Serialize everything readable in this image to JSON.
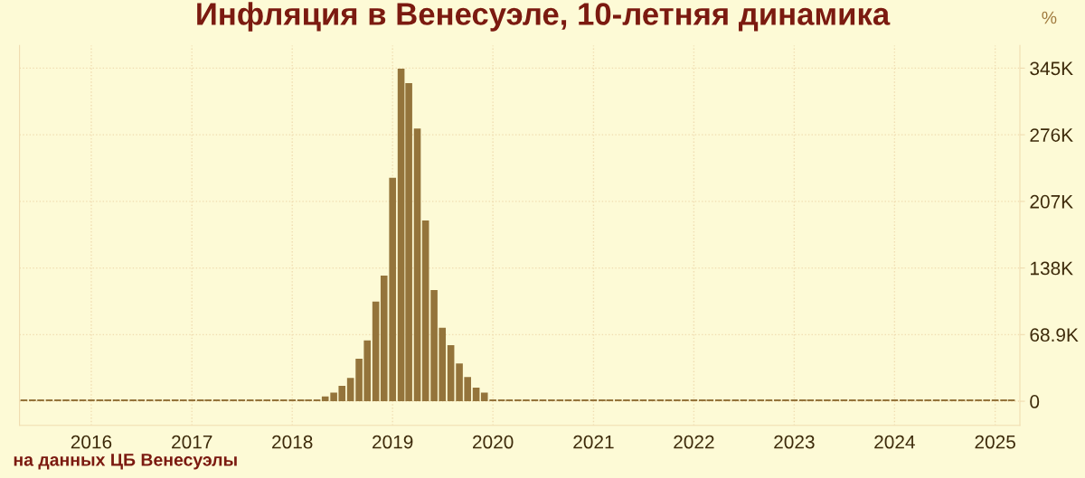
{
  "chart_data": {
    "type": "bar",
    "title": "Инфляция в Венесуэле, 10-летняя динамика",
    "ylabel": "%",
    "x": [
      "2015-05",
      "2015-06",
      "2015-07",
      "2015-08",
      "2015-09",
      "2015-10",
      "2015-11",
      "2015-12",
      "2016-01",
      "2016-02",
      "2016-03",
      "2016-04",
      "2016-05",
      "2016-06",
      "2016-07",
      "2016-08",
      "2016-09",
      "2016-10",
      "2016-11",
      "2016-12",
      "2017-01",
      "2017-02",
      "2017-03",
      "2017-04",
      "2017-05",
      "2017-06",
      "2017-07",
      "2017-08",
      "2017-09",
      "2017-10",
      "2017-11",
      "2017-12",
      "2018-01",
      "2018-02",
      "2018-03",
      "2018-04",
      "2018-05",
      "2018-06",
      "2018-07",
      "2018-08",
      "2018-09",
      "2018-10",
      "2018-11",
      "2018-12",
      "2019-01",
      "2019-02",
      "2019-03",
      "2019-04",
      "2019-05",
      "2019-06",
      "2019-07",
      "2019-08",
      "2019-09",
      "2019-10",
      "2019-11",
      "2019-12",
      "2020-01",
      "2020-02",
      "2020-03",
      "2020-04",
      "2020-05",
      "2020-06",
      "2020-07",
      "2020-08",
      "2020-09",
      "2020-10",
      "2020-11",
      "2020-12",
      "2021-01",
      "2021-02",
      "2021-03",
      "2021-04",
      "2021-05",
      "2021-06",
      "2021-07",
      "2021-08",
      "2021-09",
      "2021-10",
      "2021-11",
      "2021-12",
      "2022-01",
      "2022-02",
      "2022-03",
      "2022-04",
      "2022-05",
      "2022-06",
      "2022-07",
      "2022-08",
      "2022-09",
      "2022-10",
      "2022-11",
      "2022-12",
      "2023-01",
      "2023-02",
      "2023-03",
      "2023-04",
      "2023-05",
      "2023-06",
      "2023-07",
      "2023-08",
      "2023-09",
      "2023-10",
      "2023-11",
      "2023-12",
      "2024-01",
      "2024-02",
      "2024-03",
      "2024-04",
      "2024-05",
      "2024-06",
      "2024-07",
      "2024-08",
      "2024-09",
      "2024-10",
      "2024-11",
      "2024-12",
      "2025-01",
      "2025-02",
      "2025-03"
    ],
    "values": [
      2000,
      2000,
      2000,
      2000,
      2000,
      2000,
      2000,
      2000,
      2000,
      2000,
      2000,
      2000,
      2000,
      2000,
      2000,
      2000,
      2000,
      2000,
      2000,
      2000,
      2000,
      2000,
      2000,
      2000,
      2000,
      2000,
      2000,
      2000,
      2000,
      2000,
      2000,
      2000,
      2000,
      2000,
      2000,
      2000,
      5000,
      9000,
      16000,
      24000,
      44000,
      63000,
      103000,
      130000,
      231000,
      344000,
      329000,
      282000,
      187000,
      115000,
      76000,
      58000,
      39000,
      25000,
      14000,
      9000,
      2000,
      2000,
      2000,
      2000,
      2000,
      2000,
      2000,
      2000,
      2000,
      2000,
      2000,
      2000,
      2000,
      2000,
      2000,
      2000,
      2000,
      2000,
      2000,
      2000,
      2000,
      2000,
      2000,
      2000,
      2000,
      2000,
      2000,
      2000,
      2000,
      2000,
      2000,
      2000,
      2000,
      2000,
      2000,
      2000,
      2000,
      2000,
      2000,
      2000,
      2000,
      2000,
      2000,
      2000,
      2000,
      2000,
      2000,
      2000,
      2000,
      2000,
      2000,
      2000,
      2000,
      2000,
      2000,
      2000,
      2000,
      2000,
      2000,
      2000,
      2000,
      2000,
      2000
    ],
    "color": "#94743b",
    "xlim": [
      "2015-04-15",
      "2025-04-01"
    ],
    "xticks": [
      "2016",
      "2017",
      "2018",
      "2019",
      "2020",
      "2021",
      "2022",
      "2023",
      "2024",
      "2025"
    ],
    "ylim": [
      -25000,
      368000
    ],
    "yticks": [
      0,
      {
        "value": 68900,
        "label": "68.9K"
      },
      {
        "value": 137800,
        "label": "138K"
      },
      {
        "value": 206700,
        "label": "207K"
      },
      {
        "value": 275600,
        "label": "276K"
      },
      {
        "value": 344500,
        "label": "345K"
      }
    ],
    "grid": true,
    "annotations": [
      "на данных ЦБ Венесуэлы"
    ]
  }
}
